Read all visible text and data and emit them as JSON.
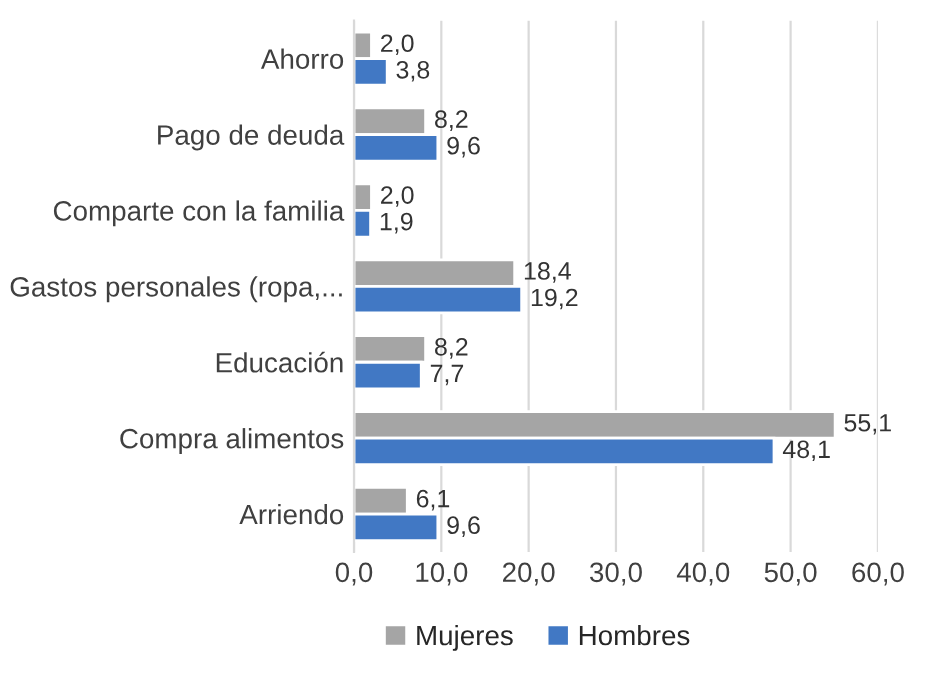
{
  "chart_data": {
    "type": "bar",
    "orientation": "horizontal",
    "categories": [
      "Ahorro",
      "Pago de deuda",
      "Comparte con la familia",
      "Gastos personales (ropa,...",
      "Educación",
      "Compra alimentos",
      "Arriendo"
    ],
    "series": [
      {
        "name": "Mujeres",
        "color": "#a5a5a5",
        "values": [
          2.0,
          8.2,
          2.0,
          18.4,
          8.2,
          55.1,
          6.1
        ],
        "value_labels": [
          "2,0",
          "8,2",
          "2,0",
          "18,4",
          "8,2",
          "55,1",
          "6,1"
        ]
      },
      {
        "name": "Hombres",
        "color": "#4178c4",
        "values": [
          3.8,
          9.6,
          1.9,
          19.2,
          7.7,
          48.1,
          9.6
        ],
        "value_labels": [
          "3,8",
          "9,6",
          "1,9",
          "19,2",
          "7,7",
          "48,1",
          "9,6"
        ]
      }
    ],
    "xlim": [
      0,
      60
    ],
    "xticks": [
      {
        "value": 0,
        "label": "0,0"
      },
      {
        "value": 10,
        "label": "10,0"
      },
      {
        "value": 20,
        "label": "20,0"
      },
      {
        "value": 30,
        "label": "30,0"
      },
      {
        "value": 40,
        "label": "40,0"
      },
      {
        "value": 50,
        "label": "50,0"
      },
      {
        "value": 60,
        "label": "60,0"
      }
    ],
    "grid": "x",
    "legend": "bottom"
  }
}
